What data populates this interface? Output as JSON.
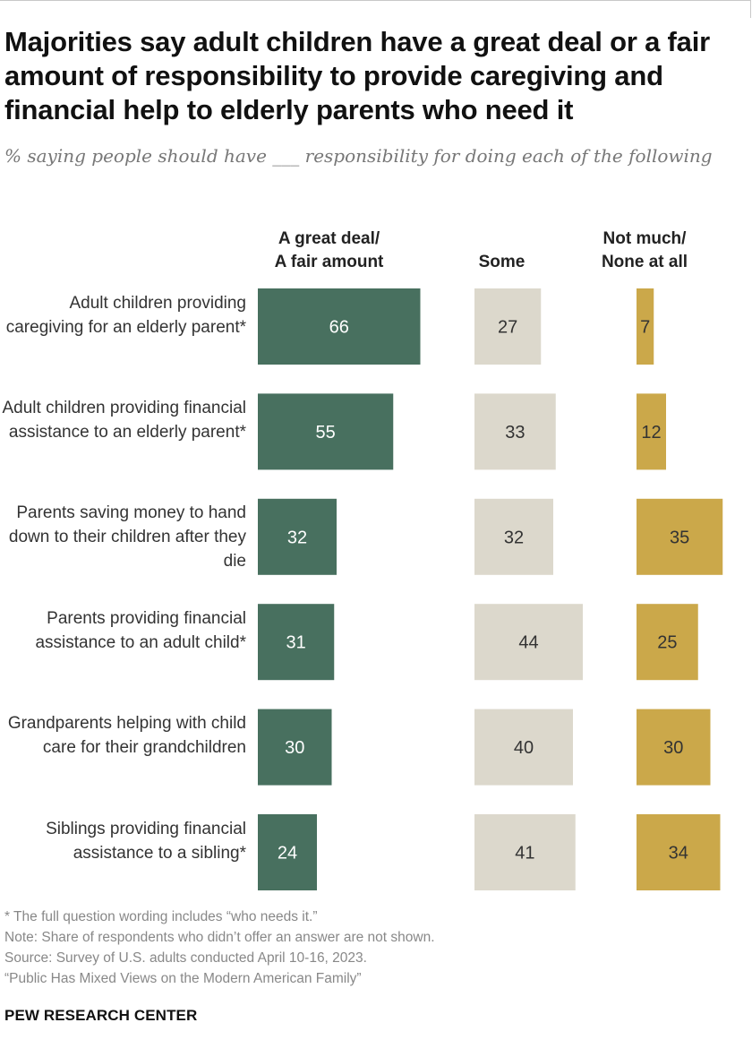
{
  "title": "Majorities say adult children have a great deal or a fair amount of responsibility to provide caregiving and financial help to elderly parents who need it",
  "subtitle": "% saying people should have ___ responsibility for doing each of the following",
  "chart_data": {
    "type": "bar",
    "categories": [
      "Adult children providing caregiving for an elderly parent*",
      "Adult children providing financial assistance to an elderly parent*",
      "Parents saving money to hand down to their children after they die",
      "Parents providing financial assistance to an adult child*",
      "Grandparents helping with child care for their grandchildren",
      "Siblings providing financial assistance to a sibling*"
    ],
    "series": [
      {
        "name": "A great deal/\nA fair amount",
        "color": "#48705f",
        "label_color": "#ffffff",
        "values": [
          66,
          55,
          32,
          31,
          30,
          24
        ]
      },
      {
        "name": "Some",
        "color": "#dcd8cc",
        "label_color": "#333333",
        "values": [
          27,
          33,
          32,
          44,
          40,
          41
        ]
      },
      {
        "name": "Not much/\nNone at all",
        "color": "#cba84a",
        "label_color": "#333333",
        "values": [
          7,
          12,
          35,
          25,
          30,
          34
        ]
      }
    ]
  },
  "footer": {
    "note1": "* The full question wording includes “who needs it.”",
    "note2": "Note: Share of respondents who didn’t offer an answer are not shown.",
    "source": "Source: Survey of U.S. adults conducted April 10-16, 2023.",
    "report": "“Public Has Mixed Views on the Modern American Family”"
  },
  "brand": "PEW RESEARCH CENTER"
}
